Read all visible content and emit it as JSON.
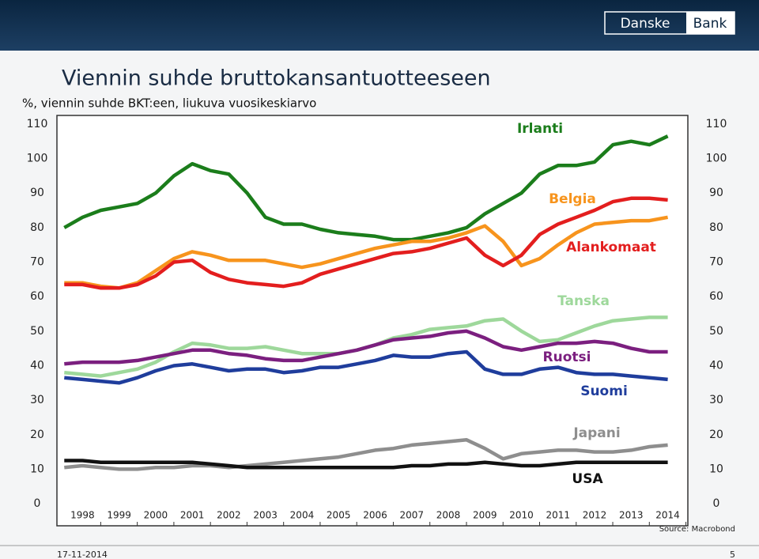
{
  "logo": [
    "Danske",
    "Bank"
  ],
  "footer": {
    "date": "17-11-2014",
    "page": "5"
  },
  "chart_data": {
    "type": "line",
    "title": "Viennin suhde bruttokansantuotteeseen",
    "subtitle": "%, viennin suhde BKT:een, liukuva vuosikeskiarvo",
    "source": "Source: Macrobond",
    "x": [
      1997.5,
      1998,
      1998.5,
      1999,
      1999.5,
      2000,
      2000.5,
      2001,
      2001.5,
      2002,
      2002.5,
      2003,
      2003.5,
      2004,
      2004.5,
      2005,
      2005.5,
      2006,
      2006.5,
      2007,
      2007.5,
      2008,
      2008.5,
      2009,
      2009.5,
      2010,
      2010.5,
      2011,
      2011.5,
      2012,
      2012.5,
      2013,
      2013.5,
      2014
    ],
    "xlim": [
      1997.3,
      2014.55
    ],
    "xticks": [
      1998,
      1999,
      2000,
      2001,
      2002,
      2003,
      2004,
      2005,
      2006,
      2007,
      2008,
      2009,
      2010,
      2011,
      2012,
      2013,
      2014
    ],
    "ylim": [
      -6.4,
      112.5
    ],
    "yticks": [
      0,
      10,
      20,
      30,
      40,
      50,
      60,
      70,
      80,
      90,
      100,
      110
    ],
    "grid": false,
    "series": [
      {
        "name": "Irlanti",
        "color": "#1b7d1b",
        "values": [
          80,
          83,
          85,
          86,
          87,
          90,
          95,
          98.5,
          96.5,
          95.5,
          90,
          83,
          81,
          81,
          79.5,
          78.5,
          78,
          77.5,
          76.5,
          76.5,
          77.5,
          78.5,
          80,
          84,
          87,
          90,
          95.5,
          98,
          98,
          99,
          104,
          105,
          104,
          106.5
        ]
      },
      {
        "name": "Belgia",
        "color": "#f7941d",
        "values": [
          64,
          64,
          63,
          62.5,
          64,
          67.5,
          71,
          73,
          72,
          70.5,
          70.5,
          70.5,
          69.5,
          68.5,
          69.5,
          71,
          72.5,
          74,
          75,
          76,
          76,
          77,
          78.5,
          80.5,
          76,
          69,
          71,
          75,
          78.5,
          81,
          81.5,
          82,
          82,
          83
        ]
      },
      {
        "name": "Alankomaat",
        "color": "#e31e1e",
        "values": [
          63.5,
          63.5,
          62.5,
          62.5,
          63.5,
          66,
          70,
          70.5,
          67,
          65,
          64,
          63.5,
          63,
          64,
          66.5,
          68,
          69.5,
          71,
          72.5,
          73,
          74,
          75.5,
          77,
          72,
          69,
          72,
          78,
          81,
          83,
          85,
          87.5,
          88.5,
          88.5,
          88
        ]
      },
      {
        "name": "Tanska",
        "color": "#9ed89b",
        "values": [
          38,
          37.5,
          37,
          38,
          39,
          41,
          44,
          46.5,
          46,
          45,
          45,
          45.5,
          44.5,
          43.5,
          43.5,
          43.5,
          44.5,
          46,
          48,
          49,
          50.5,
          51,
          51.5,
          53,
          53.5,
          50,
          47,
          47.5,
          49.5,
          51.5,
          53,
          53.5,
          54,
          54
        ]
      },
      {
        "name": "Ruotsi",
        "color": "#7b1f7f",
        "values": [
          40.5,
          41,
          41,
          41,
          41.5,
          42.5,
          43.5,
          44.5,
          44.5,
          43.5,
          43,
          42,
          41.5,
          41.5,
          42.5,
          43.5,
          44.5,
          46,
          47.5,
          48,
          48.5,
          49.5,
          50,
          48,
          45.5,
          44.5,
          45.5,
          46.5,
          46.5,
          47,
          46.5,
          45,
          44,
          44
        ]
      },
      {
        "name": "Suomi",
        "color": "#1f3d9c",
        "values": [
          36.5,
          36,
          35.5,
          35,
          36.5,
          38.5,
          40,
          40.5,
          39.5,
          38.5,
          39,
          39,
          38,
          38.5,
          39.5,
          39.5,
          40.5,
          41.5,
          43,
          42.5,
          42.5,
          43.5,
          44,
          39,
          37.5,
          37.5,
          39,
          39.5,
          38,
          37.5,
          37.5,
          37,
          36.5,
          36
        ]
      },
      {
        "name": "Japani",
        "color": "#8e8e8e",
        "values": [
          10.5,
          11,
          10.5,
          10,
          10,
          10.5,
          10.5,
          11,
          11,
          10.5,
          11,
          11.5,
          12,
          12.5,
          13,
          13.5,
          14.5,
          15.5,
          16,
          17,
          17.5,
          18,
          18.5,
          16,
          13,
          14.5,
          15,
          15.5,
          15.5,
          15,
          15,
          15.5,
          16.5,
          17
        ]
      },
      {
        "name": "USA",
        "color": "#111111",
        "values": [
          12.5,
          12.5,
          12,
          12,
          12,
          12,
          12,
          12,
          11.5,
          11,
          10.5,
          10.5,
          10.5,
          10.5,
          10.5,
          10.5,
          10.5,
          10.5,
          10.5,
          11,
          11,
          11.5,
          11.5,
          12,
          11.5,
          11,
          11,
          11.5,
          12,
          12,
          12,
          12,
          12,
          12
        ]
      }
    ]
  }
}
